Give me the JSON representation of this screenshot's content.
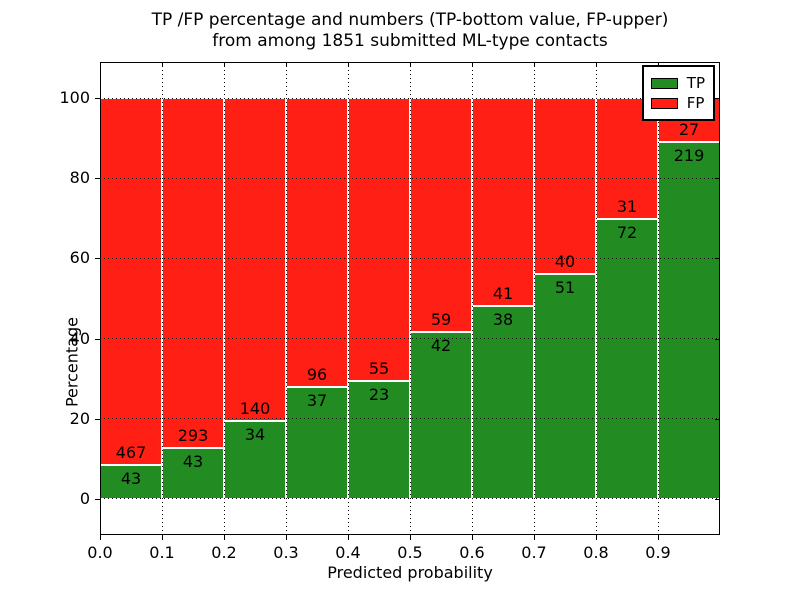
{
  "figure": {
    "background": "#ffffff"
  },
  "chart_data": {
    "type": "bar",
    "stacking": "percent",
    "title_line1": "TP /FP percentage and numbers (TP-bottom value, FP-upper)",
    "title_line2": "from among 1851 submitted ML-type contacts",
    "xlabel": "Predicted probability",
    "ylabel": "Percentage",
    "total_contacts": 1851,
    "categories": [
      "0.0",
      "0.1",
      "0.2",
      "0.3",
      "0.4",
      "0.5",
      "0.6",
      "0.7",
      "0.8",
      "0.9"
    ],
    "bin_width": 0.1,
    "series": [
      {
        "name": "TP",
        "color": "#228b22",
        "values": [
          43,
          43,
          34,
          37,
          23,
          42,
          38,
          51,
          72,
          219
        ]
      },
      {
        "name": "FP",
        "color": "#ff1f14",
        "values": [
          467,
          293,
          140,
          96,
          55,
          59,
          41,
          40,
          31,
          27
        ]
      }
    ],
    "x_ticks": [
      "0.0",
      "0.1",
      "0.2",
      "0.3",
      "0.4",
      "0.5",
      "0.6",
      "0.7",
      "0.8",
      "0.9"
    ],
    "y_ticks": [
      0,
      20,
      40,
      60,
      80,
      100
    ],
    "xlim": [
      0.0,
      1.0
    ],
    "ylim": [
      -9,
      109
    ],
    "grid": true,
    "grid_style": "dotted",
    "legend_position": "upper right",
    "bar_edge_color": "#ffffff",
    "annotation_note": "TP count below segment boundary, FP count above segment boundary"
  }
}
